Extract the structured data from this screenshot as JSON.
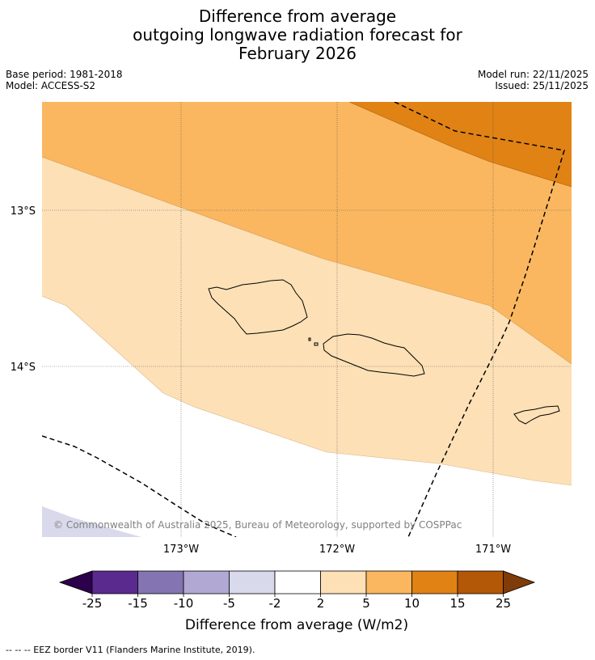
{
  "title": {
    "line1": "Difference from average",
    "line2": "outgoing longwave radiation forecast for",
    "line3": "February 2026"
  },
  "meta": {
    "base_period": "Base period: 1981-2018",
    "model": "Model: ACCESS-S2",
    "model_run": "Model run: 22/11/2025",
    "issued": "Issued: 25/11/2025"
  },
  "map": {
    "lat_labels": [
      "13°S",
      "14°S"
    ],
    "lon_labels": [
      "173°W",
      "172°W",
      "171°W"
    ],
    "copyright": "© Commonwealth of Australia 2025, Bureau of Meteorology, supported by COSPPac"
  },
  "colorbar": {
    "label": "Difference from average (W/m2)",
    "ticks": [
      "-25",
      "-15",
      "-10",
      "-5",
      "-2",
      "2",
      "5",
      "10",
      "15",
      "25"
    ],
    "bins": [
      {
        "range": "-25 to -15",
        "color": "#5b2a8e"
      },
      {
        "range": "-15 to -10",
        "color": "#8474b2"
      },
      {
        "range": "-10 to -5",
        "color": "#b1a9d3"
      },
      {
        "range": "-5 to -2",
        "color": "#d9d9ec"
      },
      {
        "range": "-2 to 2",
        "color": "#ffffff"
      },
      {
        "range": "2 to 5",
        "color": "#fde0b6"
      },
      {
        "range": "5 to 10",
        "color": "#fab760"
      },
      {
        "range": "10 to 15",
        "color": "#e08214"
      },
      {
        "range": "15 to 25",
        "color": "#b35806"
      }
    ],
    "under_color": "#2d004b",
    "over_color": "#7f3b08"
  },
  "footer": {
    "legend_text": "--  --  -- EEZ border V11 (Flanders Marine Institute, 2019)."
  }
}
